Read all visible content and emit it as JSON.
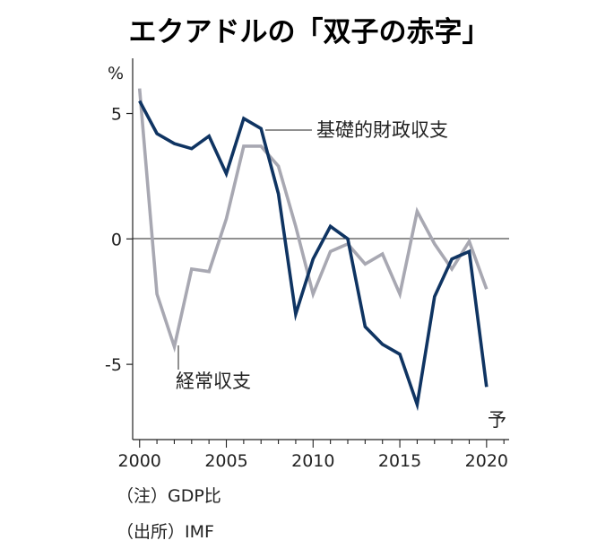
{
  "chart_data": {
    "type": "line",
    "title": "エクアドルの「双子の赤字」",
    "unit_label": "%",
    "x": [
      2000,
      2001,
      2002,
      2003,
      2004,
      2005,
      2006,
      2007,
      2008,
      2009,
      2010,
      2011,
      2012,
      2013,
      2014,
      2015,
      2016,
      2017,
      2018,
      2019,
      2020,
      2021
    ],
    "x_ticks": [
      2000,
      2005,
      2010,
      2015,
      2020
    ],
    "y_ticks": [
      5,
      0,
      -5
    ],
    "y_tick_labels": [
      "5",
      "0",
      "-5"
    ],
    "xlim": [
      1999.6,
      2021.3
    ],
    "ylim": [
      -8.0,
      7.2
    ],
    "grid": false,
    "zero_line": true,
    "series": [
      {
        "name": "基礎的財政収支",
        "color": "#0f3462",
        "values": [
          5.5,
          4.2,
          3.8,
          3.6,
          4.1,
          2.6,
          4.8,
          4.4,
          1.8,
          -3.0,
          -0.8,
          0.5,
          0.0,
          -3.5,
          -4.2,
          -4.6,
          -6.6,
          -2.3,
          -0.8,
          -0.5,
          -5.9,
          null
        ]
      },
      {
        "name": "経常収支",
        "color": "#a8a8b2",
        "values": [
          6.0,
          -2.2,
          -4.3,
          -1.2,
          -1.3,
          0.8,
          3.7,
          3.7,
          2.9,
          0.5,
          -2.2,
          -0.5,
          -0.2,
          -1.0,
          -0.6,
          -2.2,
          1.1,
          -0.2,
          -1.2,
          -0.1,
          -2.0,
          null
        ]
      }
    ],
    "forecast_label": "予",
    "notes": [
      "（注）GDP比",
      "（出所）IMF"
    ]
  }
}
